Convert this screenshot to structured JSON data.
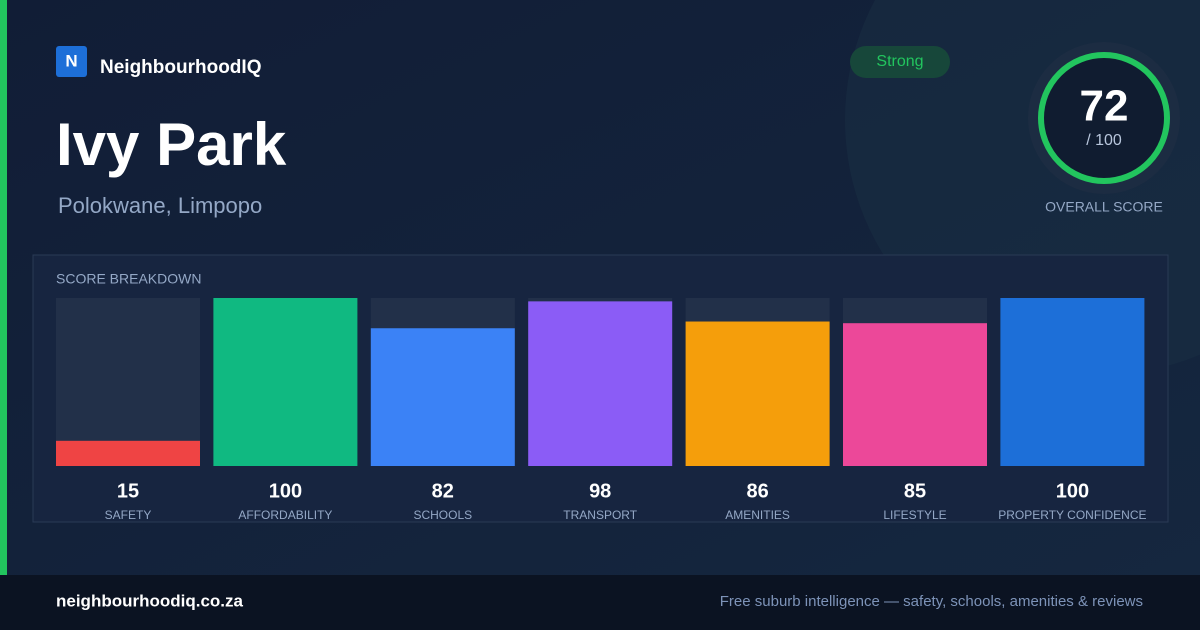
{
  "brand": {
    "logo": "N",
    "name": "NeighbourhoodIQ"
  },
  "suburb": "Ivy Park",
  "location": "Polokwane, Limpopo",
  "rating": "Strong",
  "overall": {
    "score": 72,
    "max_label": "/ 100",
    "label": "OVERALL SCORE"
  },
  "chart_data": {
    "type": "bar",
    "title": "SCORE BREAKDOWN",
    "categories": [
      "SAFETY",
      "AFFORDABILITY",
      "SCHOOLS",
      "TRANSPORT",
      "AMENITIES",
      "LIFESTYLE",
      "PROPERTY CONFIDENCE"
    ],
    "values": [
      15,
      100,
      82,
      98,
      86,
      85,
      100
    ],
    "colors": [
      "#ef4444",
      "#10b981",
      "#3b82f6",
      "#8b5cf6",
      "#f59e0b",
      "#ec4899",
      "#1d6fd8"
    ],
    "ylim": [
      0,
      100
    ]
  },
  "footer": {
    "site": "neighbourhoodiq.co.za",
    "tagline": "Free suburb intelligence — safety, schools, amenities & reviews"
  }
}
